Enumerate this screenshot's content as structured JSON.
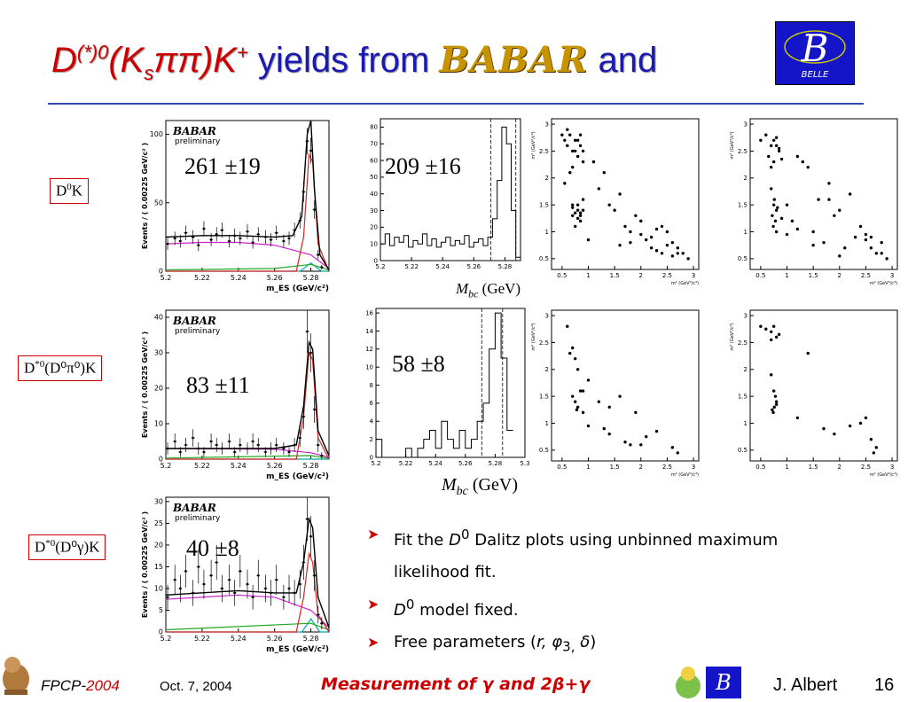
{
  "title": {
    "pre": "D",
    "sup1": "(*)0",
    "mid1": "(K",
    "sub1": "s",
    "mid2": "ππ)K",
    "sup2": "+",
    "yields": " yields from ",
    "babar": "BABAR",
    "and": " and"
  },
  "logos": {
    "belle_letter": "B",
    "belle_text": "BELLE"
  },
  "colors": {
    "title_blue": "#1a1ab3",
    "title_red": "#cc0000",
    "accent_red": "#cc0000",
    "belle_blue": "#1414c8"
  },
  "rows": [
    {
      "label_main": "D",
      "label_sup": "0",
      "label_rest": "K",
      "babar_yield": "261 ±19",
      "belle_yield": "209 ±16"
    },
    {
      "label_main": "D",
      "label_sup": "*0",
      "label_rest": "(D⁰π⁰)K",
      "babar_yield": "83 ±11",
      "belle_yield": "58 ±8"
    },
    {
      "label_main": "D",
      "label_sup": "*0",
      "label_rest": "(D⁰γ)K",
      "babar_yield": "40 ±8",
      "belle_yield": ""
    }
  ],
  "mbc_label": {
    "main": "M",
    "sub": "bc",
    "unit": " (GeV)"
  },
  "chart_data": [
    {
      "type": "scatter",
      "name": "babar-mes-d0k",
      "title": "BABAR preliminary",
      "xlabel": "m_ES (GeV/c²)",
      "ylabel": "Events / ( 0.00225 GeV/c² )",
      "xlim": [
        5.2,
        5.29
      ],
      "ylim": [
        0,
        110
      ],
      "xticks": [
        "5.2",
        "5.22",
        "5.24",
        "5.26",
        "5.28"
      ],
      "yticks": [
        "0",
        "50",
        "100"
      ],
      "x": [
        5.201,
        5.205,
        5.208,
        5.211,
        5.215,
        5.218,
        5.221,
        5.225,
        5.228,
        5.231,
        5.235,
        5.238,
        5.241,
        5.245,
        5.248,
        5.251,
        5.255,
        5.258,
        5.261,
        5.265,
        5.268,
        5.271,
        5.274,
        5.276,
        5.278,
        5.28,
        5.282,
        5.284,
        5.286
      ],
      "y": [
        20,
        24,
        22,
        28,
        25,
        19,
        31,
        23,
        27,
        30,
        22,
        26,
        24,
        29,
        21,
        27,
        25,
        23,
        28,
        22,
        24,
        30,
        37,
        58,
        95,
        88,
        45,
        12,
        3
      ],
      "curves": {
        "total": [
          [
            5.2,
            25
          ],
          [
            5.22,
            26
          ],
          [
            5.24,
            26
          ],
          [
            5.26,
            25
          ],
          [
            5.27,
            26
          ],
          [
            5.275,
            40
          ],
          [
            5.278,
            100
          ],
          [
            5.28,
            110
          ],
          [
            5.282,
            60
          ],
          [
            5.285,
            12
          ],
          [
            5.29,
            1
          ]
        ],
        "signal": [
          [
            5.2,
            0
          ],
          [
            5.272,
            0
          ],
          [
            5.276,
            25
          ],
          [
            5.279,
            85
          ],
          [
            5.281,
            80
          ],
          [
            5.284,
            20
          ],
          [
            5.29,
            0
          ]
        ],
        "continuum": [
          [
            5.2,
            20
          ],
          [
            5.22,
            21
          ],
          [
            5.24,
            21
          ],
          [
            5.26,
            19
          ],
          [
            5.28,
            12
          ],
          [
            5.29,
            2
          ]
        ],
        "bb": [
          [
            5.2,
            1
          ],
          [
            5.26,
            2
          ],
          [
            5.28,
            5
          ],
          [
            5.29,
            1
          ]
        ],
        "peaking": [
          [
            5.2,
            0
          ],
          [
            5.274,
            0
          ],
          [
            5.28,
            6
          ],
          [
            5.286,
            0
          ],
          [
            5.29,
            0
          ]
        ]
      },
      "yield_label": "261 ±19"
    },
    {
      "type": "scatter",
      "name": "babar-mes-dstar-pi0",
      "title": "BABAR preliminary",
      "xlabel": "m_ES (GeV/c²)",
      "ylabel": "Events / ( 0.00225 GeV/c² )",
      "xlim": [
        5.2,
        5.29
      ],
      "ylim": [
        0,
        42
      ],
      "xticks": [
        "5.2",
        "5.22",
        "5.24",
        "5.26",
        "5.28"
      ],
      "yticks": [
        "0",
        "10",
        "20",
        "30",
        "40"
      ],
      "x": [
        5.201,
        5.205,
        5.208,
        5.211,
        5.215,
        5.218,
        5.221,
        5.225,
        5.228,
        5.231,
        5.235,
        5.238,
        5.241,
        5.245,
        5.248,
        5.251,
        5.255,
        5.258,
        5.261,
        5.265,
        5.268,
        5.271,
        5.274,
        5.276,
        5.278,
        5.28,
        5.282,
        5.284,
        5.286
      ],
      "y": [
        3,
        5,
        2,
        4,
        6,
        3,
        2,
        5,
        4,
        3,
        5,
        2,
        4,
        3,
        5,
        4,
        2,
        3,
        4,
        3,
        2,
        4,
        6,
        12,
        36,
        30,
        14,
        4,
        1
      ],
      "curves": {
        "total": [
          [
            5.2,
            3
          ],
          [
            5.26,
            3
          ],
          [
            5.272,
            4
          ],
          [
            5.276,
            15
          ],
          [
            5.279,
            33
          ],
          [
            5.281,
            31
          ],
          [
            5.284,
            8
          ],
          [
            5.29,
            1
          ]
        ],
        "signal": [
          [
            5.2,
            0
          ],
          [
            5.272,
            0
          ],
          [
            5.276,
            12
          ],
          [
            5.279,
            30
          ],
          [
            5.281,
            28
          ],
          [
            5.284,
            6
          ],
          [
            5.29,
            0
          ]
        ],
        "continuum": [
          [
            5.2,
            3
          ],
          [
            5.26,
            2.8
          ],
          [
            5.28,
            1.8
          ],
          [
            5.29,
            0.5
          ]
        ],
        "bb": [
          [
            5.2,
            0.3
          ],
          [
            5.28,
            1
          ],
          [
            5.29,
            0.2
          ]
        ],
        "peaking": [
          [
            5.2,
            0
          ],
          [
            5.29,
            0
          ]
        ]
      },
      "yield_label": "83 ±11"
    },
    {
      "type": "scatter",
      "name": "babar-mes-dstar-gamma",
      "title": "BABAR preliminary",
      "xlabel": "m_ES (GeV/c²)",
      "ylabel": "Events / ( 0.00225 GeV/c² )",
      "xlim": [
        5.2,
        5.29
      ],
      "ylim": [
        0,
        31
      ],
      "xticks": [
        "5.2",
        "5.22",
        "5.24",
        "5.26",
        "5.28"
      ],
      "yticks": [
        "0",
        "5",
        "10",
        "15",
        "20",
        "25",
        "30"
      ],
      "x": [
        5.201,
        5.205,
        5.208,
        5.211,
        5.215,
        5.218,
        5.221,
        5.225,
        5.228,
        5.231,
        5.235,
        5.238,
        5.241,
        5.245,
        5.248,
        5.251,
        5.255,
        5.258,
        5.261,
        5.265,
        5.268,
        5.271,
        5.274,
        5.276,
        5.278,
        5.28,
        5.282,
        5.284,
        5.286
      ],
      "y": [
        8,
        12,
        10,
        14,
        9,
        15,
        11,
        13,
        16,
        10,
        12,
        9,
        14,
        11,
        8,
        13,
        10,
        9,
        12,
        8,
        10,
        9,
        11,
        16,
        26,
        22,
        13,
        4,
        2
      ],
      "curves": {
        "total": [
          [
            5.2,
            8.5
          ],
          [
            5.24,
            9.5
          ],
          [
            5.26,
            9
          ],
          [
            5.272,
            9
          ],
          [
            5.276,
            16
          ],
          [
            5.279,
            26
          ],
          [
            5.281,
            24
          ],
          [
            5.284,
            8
          ],
          [
            5.29,
            1
          ]
        ],
        "signal": [
          [
            5.2,
            0
          ],
          [
            5.272,
            0
          ],
          [
            5.276,
            8
          ],
          [
            5.279,
            18
          ],
          [
            5.281,
            16
          ],
          [
            5.284,
            4
          ],
          [
            5.29,
            0
          ]
        ],
        "continuum": [
          [
            5.2,
            7.5
          ],
          [
            5.24,
            8.5
          ],
          [
            5.26,
            8
          ],
          [
            5.28,
            5
          ],
          [
            5.29,
            1
          ]
        ],
        "bb": [
          [
            5.2,
            0.5
          ],
          [
            5.28,
            2
          ],
          [
            5.29,
            0.5
          ]
        ],
        "peaking": [
          [
            5.2,
            0
          ],
          [
            5.275,
            0
          ],
          [
            5.28,
            3
          ],
          [
            5.285,
            0
          ],
          [
            5.29,
            0
          ]
        ]
      },
      "yield_label": "40 ±8"
    },
    {
      "type": "bar",
      "name": "belle-mbc-d0k",
      "xlim": [
        5.2,
        5.29
      ],
      "ylim": [
        0,
        85
      ],
      "xticks": [
        "5.2",
        "5.22",
        "5.24",
        "5.26",
        "5.28"
      ],
      "yticks": [
        "0",
        "10",
        "20",
        "30",
        "40",
        "50",
        "60",
        "70",
        "80"
      ],
      "x": [
        5.2,
        5.203,
        5.206,
        5.209,
        5.212,
        5.215,
        5.218,
        5.221,
        5.224,
        5.227,
        5.23,
        5.233,
        5.236,
        5.239,
        5.242,
        5.245,
        5.248,
        5.251,
        5.254,
        5.257,
        5.26,
        5.263,
        5.266,
        5.269,
        5.272,
        5.275,
        5.278,
        5.281,
        5.284,
        5.287
      ],
      "values": [
        10,
        16,
        9,
        14,
        11,
        15,
        8,
        12,
        10,
        16,
        9,
        13,
        8,
        11,
        14,
        9,
        12,
        10,
        15,
        8,
        11,
        13,
        9,
        14,
        25,
        48,
        80,
        70,
        30,
        2
      ],
      "signal_window": [
        5.271,
        5.287
      ],
      "yield_label": "209 ±16"
    },
    {
      "type": "bar",
      "name": "belle-mbc-dstar-pi0",
      "xlim": [
        5.2,
        5.3
      ],
      "ylim": [
        0,
        16.5
      ],
      "xticks": [
        "5.2",
        "5.22",
        "5.24",
        "5.26",
        "5.28",
        "5.3"
      ],
      "yticks": [
        "0",
        "2",
        "4",
        "6",
        "8",
        "10",
        "12",
        "14",
        "16"
      ],
      "x": [
        5.2,
        5.204,
        5.208,
        5.212,
        5.216,
        5.22,
        5.224,
        5.228,
        5.232,
        5.236,
        5.24,
        5.244,
        5.248,
        5.252,
        5.256,
        5.26,
        5.264,
        5.268,
        5.272,
        5.276,
        5.28,
        5.284,
        5.288
      ],
      "values": [
        2,
        0,
        0,
        0,
        0,
        1,
        0,
        1,
        2,
        3,
        1,
        4,
        2,
        1,
        3,
        1,
        2,
        4,
        6,
        12,
        16,
        11,
        3
      ],
      "signal_window": [
        5.271,
        5.285
      ],
      "yield_label": "58 ±8"
    },
    {
      "type": "scatter",
      "name": "belle-dalitz-d0k-a",
      "xlabel": "m² (GeV²/c⁴)",
      "ylabel": "m² (GeV²/c⁴)",
      "xlim": [
        0.3,
        3.1
      ],
      "ylim": [
        0.3,
        3.1
      ],
      "xticks": [
        "0.5",
        "1",
        "1.5",
        "2",
        "2.5",
        "3"
      ],
      "yticks": [
        "0.5",
        "1",
        "1.5",
        "2",
        "2.5",
        "3"
      ],
      "x": [
        0.5,
        0.55,
        0.6,
        0.65,
        0.7,
        0.75,
        0.8,
        0.85,
        0.9,
        0.6,
        0.7,
        0.8,
        0.75,
        0.65,
        0.85,
        0.9,
        0.55,
        0.7,
        0.8,
        0.85,
        0.75,
        0.7,
        0.8,
        0.9,
        0.85,
        0.8,
        0.7,
        0.75,
        0.85,
        0.9,
        1.2,
        1.5,
        1.8,
        2.0,
        2.2,
        2.4,
        2.6,
        2.7,
        1.3,
        1.6,
        1.9,
        2.1,
        2.3,
        2.5,
        2.8,
        1.1,
        1.4,
        1.7,
        2.0,
        2.2,
        2.4,
        2.6,
        2.9,
        1.0,
        1.6,
        2.5,
        1.8,
        2.3,
        2.7
      ],
      "y": [
        2.8,
        2.7,
        2.6,
        2.8,
        2.5,
        2.7,
        2.4,
        2.6,
        2.3,
        2.9,
        2.2,
        2.7,
        2.5,
        2.1,
        2.8,
        2.5,
        1.9,
        1.5,
        1.4,
        1.3,
        1.35,
        1.45,
        1.25,
        1.4,
        1.2,
        1.5,
        1.3,
        1.1,
        1.35,
        1.6,
        1.8,
        1.4,
        1.0,
        1.2,
        0.9,
        1.1,
        0.8,
        0.7,
        2.1,
        1.7,
        1.3,
        0.85,
        1.05,
        0.75,
        0.6,
        2.3,
        1.5,
        1.1,
        0.95,
        0.7,
        0.6,
        0.55,
        0.5,
        0.85,
        0.75,
        1.0,
        0.8,
        0.65,
        0.6
      ]
    },
    {
      "type": "scatter",
      "name": "belle-dalitz-d0k-b",
      "xlabel": "m² (GeV²/c⁴)",
      "ylabel": "m² (GeV²/c⁴)",
      "xlim": [
        0.3,
        3.1
      ],
      "ylim": [
        0.3,
        3.1
      ],
      "xticks": [
        "0.5",
        "1",
        "1.5",
        "2",
        "2.5",
        "3"
      ],
      "yticks": [
        "0.5",
        "1",
        "1.5",
        "2",
        "2.5",
        "3"
      ],
      "x": [
        0.5,
        0.6,
        0.7,
        0.75,
        0.8,
        0.85,
        0.65,
        0.7,
        0.8,
        0.75,
        0.85,
        0.9,
        0.7,
        0.75,
        0.8,
        0.72,
        0.78,
        0.82,
        0.76,
        0.74,
        0.8,
        0.9,
        1.0,
        1.2,
        1.4,
        1.6,
        1.8,
        2.0,
        2.2,
        2.4,
        2.6,
        2.8,
        1.1,
        1.3,
        1.5,
        1.7,
        1.9,
        2.1,
        2.3,
        2.5,
        2.7,
        1.0,
        1.2,
        1.5,
        2.0,
        2.5,
        2.9,
        2.6,
        2.8,
        1.8
      ],
      "y": [
        2.7,
        2.8,
        2.6,
        2.7,
        2.75,
        2.5,
        2.4,
        2.2,
        2.6,
        2.3,
        2.55,
        2.35,
        1.8,
        1.5,
        1.4,
        1.3,
        1.2,
        1.45,
        1.6,
        1.1,
        1.0,
        1.25,
        0.95,
        2.4,
        2.2,
        1.6,
        1.9,
        1.4,
        1.7,
        1.1,
        0.9,
        0.6,
        1.2,
        2.3,
        1.0,
        0.8,
        1.3,
        0.7,
        0.9,
        0.85,
        0.6,
        1.5,
        1.05,
        0.75,
        0.55,
        0.95,
        0.5,
        0.7,
        0.8,
        1.6
      ]
    },
    {
      "type": "scatter",
      "name": "belle-dalitz-dstar-a",
      "xlabel": "m² (GeV²/c⁴)",
      "ylabel": "m² (GeV²/c⁴)",
      "xlim": [
        0.3,
        3.1
      ],
      "ylim": [
        0.3,
        3.1
      ],
      "xticks": [
        "0.5",
        "1",
        "1.5",
        "2",
        "2.5",
        "3"
      ],
      "yticks": [
        "0.5",
        "1",
        "1.5",
        "2",
        "2.5",
        "3"
      ],
      "x": [
        0.6,
        0.7,
        0.75,
        0.8,
        0.85,
        0.7,
        0.75,
        0.8,
        0.78,
        0.9,
        1.0,
        1.3,
        1.4,
        1.6,
        1.9,
        2.1,
        2.3,
        1.7,
        1.8,
        1.2,
        1.4,
        2.0,
        2.6,
        2.7,
        0.65,
        0.9,
        1.0
      ],
      "y": [
        2.8,
        2.4,
        2.2,
        2.0,
        1.6,
        1.5,
        1.4,
        1.3,
        1.25,
        1.2,
        1.8,
        0.9,
        1.3,
        1.5,
        1.2,
        0.75,
        0.85,
        0.65,
        0.6,
        1.4,
        0.8,
        0.6,
        0.55,
        0.45,
        2.3,
        1.6,
        0.95
      ]
    },
    {
      "type": "scatter",
      "name": "belle-dalitz-dstar-b",
      "xlabel": "m² (GeV²/c⁴)",
      "ylabel": "m² (GeV²/c⁴)",
      "xlim": [
        0.3,
        3.1
      ],
      "ylim": [
        0.3,
        3.1
      ],
      "xticks": [
        "0.5",
        "1",
        "1.5",
        "2",
        "2.5",
        "3"
      ],
      "yticks": [
        "0.5",
        "1",
        "1.5",
        "2",
        "2.5",
        "3"
      ],
      "x": [
        0.5,
        0.6,
        0.7,
        0.75,
        0.8,
        0.85,
        0.7,
        0.75,
        0.78,
        0.8,
        0.76,
        0.72,
        0.74,
        0.8,
        1.4,
        1.7,
        1.9,
        2.2,
        2.4,
        2.5,
        2.6,
        2.7,
        2.65,
        0.7,
        1.2
      ],
      "y": [
        2.8,
        2.75,
        2.7,
        2.8,
        2.6,
        2.65,
        1.9,
        1.6,
        1.5,
        1.4,
        1.3,
        1.25,
        1.2,
        1.35,
        2.3,
        0.9,
        0.8,
        0.95,
        1.0,
        1.1,
        0.7,
        0.55,
        0.45,
        2.55,
        1.1
      ]
    }
  ],
  "bullets": [
    {
      "pre": "Fit the ",
      "em": "D",
      "sup": "0",
      "post": " Dalitz plots using unbinned maximum likelihood fit."
    },
    {
      "pre": "",
      "em": "D",
      "sup": "0",
      "post": " model fixed."
    },
    {
      "pre": "Free parameters (",
      "em": "r, φ",
      "sub": "3,",
      "em2": " δ",
      "post": ")"
    }
  ],
  "footer": {
    "conf_main": "FPCP-",
    "conf_year": "2004",
    "date": "Oct. 7, 2004",
    "talk_pre": "Measurement of ",
    "talk_gamma": "γ",
    "talk_and": " and ",
    "talk_post": "2β+γ",
    "author": "J. Albert",
    "page": "16"
  }
}
